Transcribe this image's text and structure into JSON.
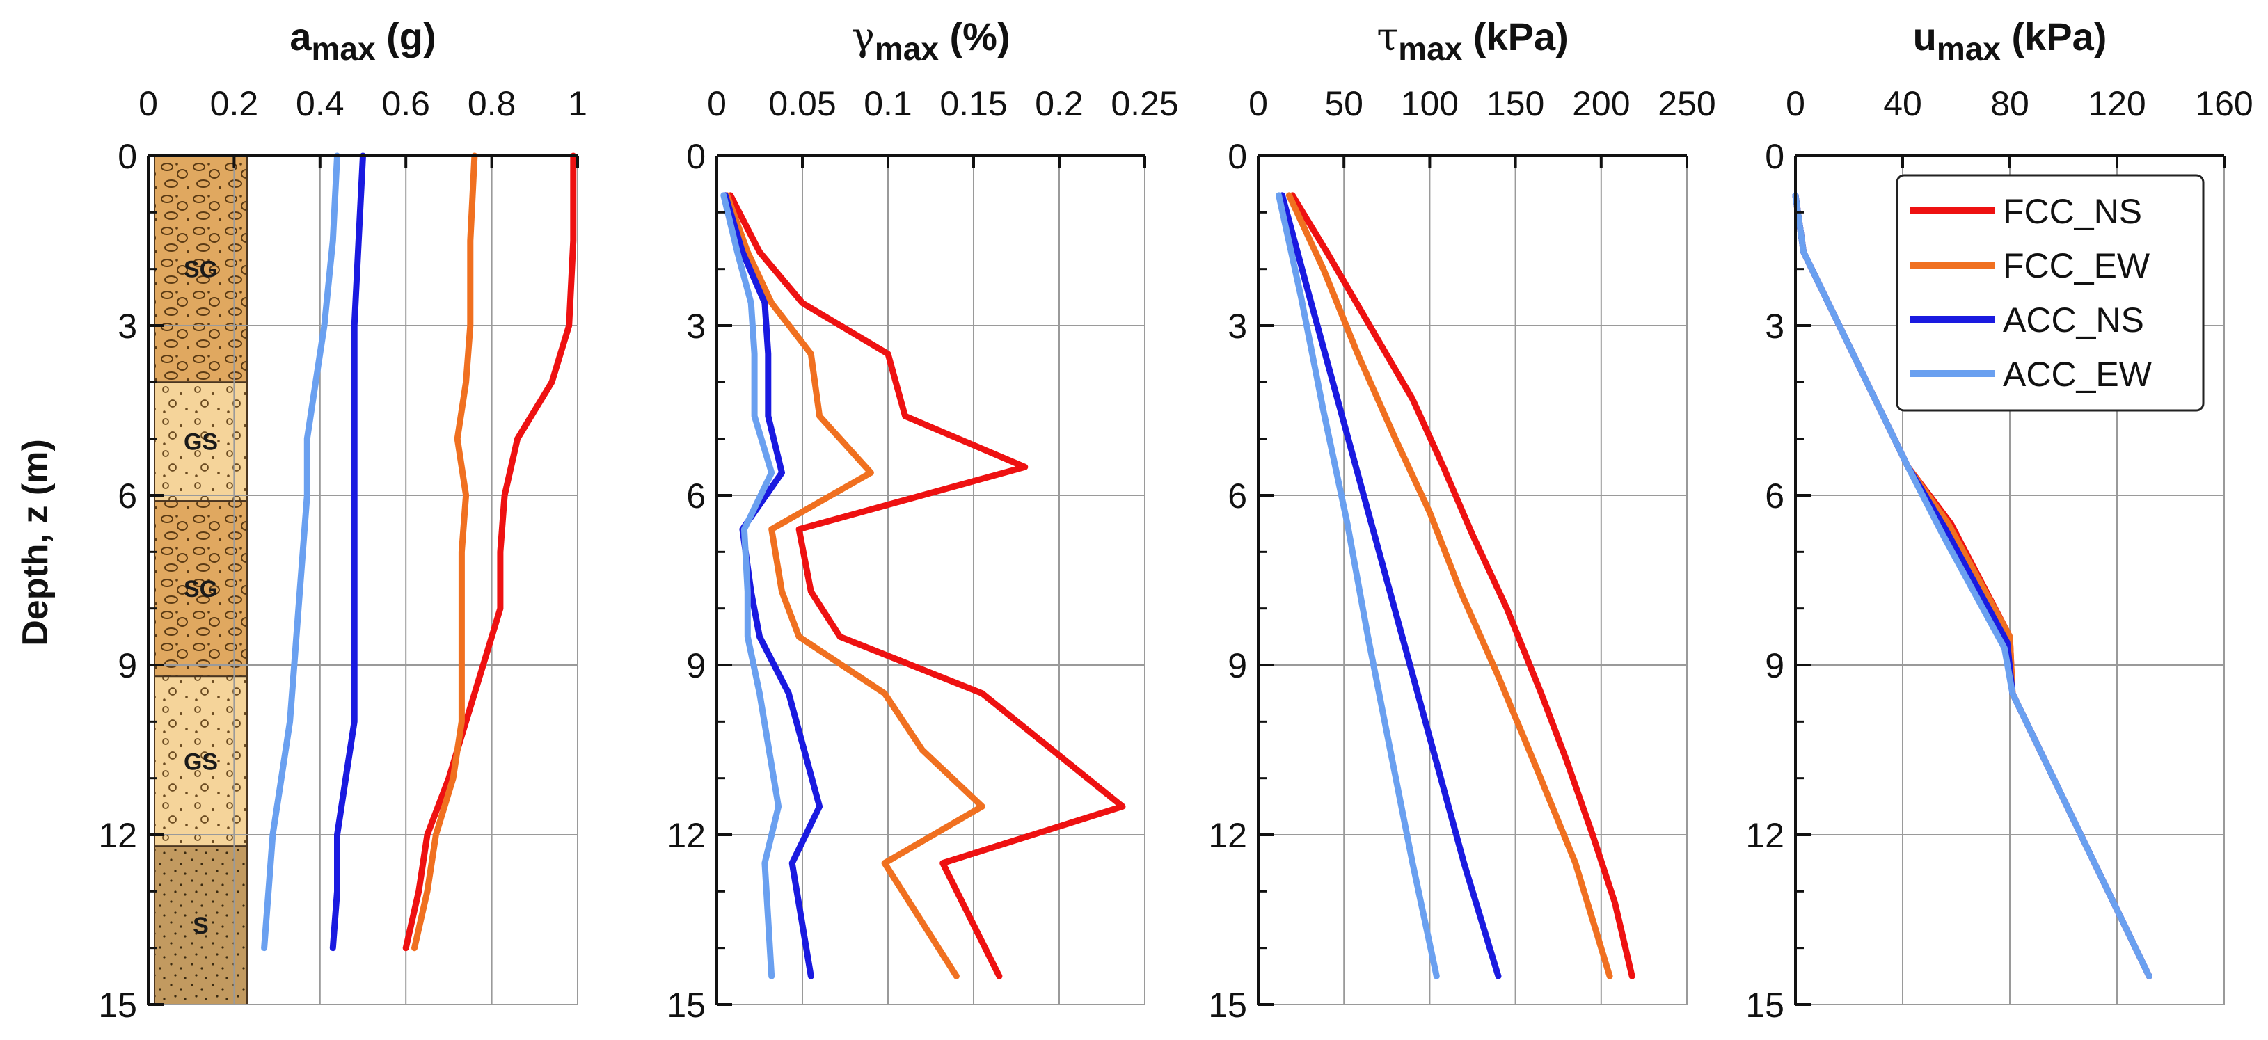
{
  "figure": {
    "ylabel": "Depth, z (m)",
    "y_ticks": [
      0,
      3,
      6,
      9,
      12,
      15
    ],
    "ylim": [
      0,
      15
    ]
  },
  "legend": {
    "entries": [
      {
        "name": "FCC_NS",
        "color": "#ee1111"
      },
      {
        "name": "FCC_EW",
        "color": "#f07020"
      },
      {
        "name": "ACC_NS",
        "color": "#1a1ae0"
      },
      {
        "name": "ACC_EW",
        "color": "#6aa0f0"
      }
    ]
  },
  "soil_column": {
    "layers": [
      {
        "label": "SG",
        "top": 0,
        "bottom": 4.0,
        "color": "#e0a860"
      },
      {
        "label": "GS",
        "top": 4.0,
        "bottom": 6.1,
        "color": "#f5d49a"
      },
      {
        "label": "SG",
        "top": 6.1,
        "bottom": 9.2,
        "color": "#e0a860"
      },
      {
        "label": "GS",
        "top": 9.2,
        "bottom": 12.2,
        "color": "#f5d49a"
      },
      {
        "label": "S",
        "top": 12.2,
        "bottom": 15.0,
        "color": "#c29a60"
      }
    ]
  },
  "chart_data": [
    {
      "type": "line",
      "title_main": "a",
      "title_sub": "max",
      "title_unit": " (g)",
      "xlim": [
        0,
        1
      ],
      "x_ticks": [
        0,
        0.2,
        0.4,
        0.6,
        0.8,
        1
      ],
      "x_tick_labels": [
        "0",
        "0.2",
        "0.4",
        "0.6",
        "0.8",
        "1"
      ],
      "ylabel": "Depth, z (m)",
      "ylim": [
        0,
        15
      ],
      "series": [
        {
          "name": "FCC_NS",
          "x": [
            0.99,
            0.99,
            0.98,
            0.94,
            0.86,
            0.83,
            0.82,
            0.82,
            0.78,
            0.74,
            0.7,
            0.65,
            0.63,
            0.6
          ],
          "y": [
            0,
            1.5,
            3.0,
            4.0,
            5.0,
            6.0,
            7.0,
            8.0,
            9.0,
            10.0,
            11.0,
            12.0,
            13.0,
            14.0
          ]
        },
        {
          "name": "FCC_EW",
          "x": [
            0.76,
            0.75,
            0.75,
            0.74,
            0.72,
            0.74,
            0.73,
            0.73,
            0.73,
            0.73,
            0.71,
            0.67,
            0.65,
            0.62
          ],
          "y": [
            0,
            1.5,
            3.0,
            4.0,
            5.0,
            6.0,
            7.0,
            8.0,
            9.0,
            10.0,
            11.0,
            12.0,
            13.0,
            14.0
          ]
        },
        {
          "name": "ACC_NS",
          "x": [
            0.5,
            0.49,
            0.48,
            0.48,
            0.48,
            0.48,
            0.48,
            0.48,
            0.48,
            0.48,
            0.46,
            0.44,
            0.44,
            0.43
          ],
          "y": [
            0,
            1.5,
            3.0,
            4.0,
            5.0,
            6.0,
            7.0,
            8.0,
            9.0,
            10.0,
            11.0,
            12.0,
            13.0,
            14.0
          ]
        },
        {
          "name": "ACC_EW",
          "x": [
            0.44,
            0.43,
            0.41,
            0.39,
            0.37,
            0.37,
            0.36,
            0.35,
            0.34,
            0.33,
            0.31,
            0.29,
            0.28,
            0.27
          ],
          "y": [
            0,
            1.5,
            3.0,
            4.0,
            5.0,
            6.0,
            7.0,
            8.0,
            9.0,
            10.0,
            11.0,
            12.0,
            13.0,
            14.0
          ]
        }
      ]
    },
    {
      "type": "line",
      "title_main": "γ",
      "title_sub": "max",
      "title_unit": " (%)",
      "xlim": [
        0,
        0.25
      ],
      "x_ticks": [
        0,
        0.05,
        0.1,
        0.15,
        0.2,
        0.25
      ],
      "x_tick_labels": [
        "0",
        "0.05",
        "0.1",
        "0.15",
        "0.2",
        "0.25"
      ],
      "ylabel": "Depth, z (m)",
      "ylim": [
        0,
        15
      ],
      "series": [
        {
          "name": "FCC_NS",
          "x": [
            0.008,
            0.025,
            0.05,
            0.1,
            0.11,
            0.18,
            0.048,
            0.055,
            0.072,
            0.155,
            0.237,
            0.132,
            0.165
          ],
          "y": [
            0.7,
            1.7,
            2.6,
            3.5,
            4.6,
            5.5,
            6.6,
            7.7,
            8.5,
            9.5,
            11.5,
            12.5,
            14.5
          ]
        },
        {
          "name": "FCC_EW",
          "x": [
            0.006,
            0.018,
            0.032,
            0.055,
            0.06,
            0.09,
            0.032,
            0.038,
            0.048,
            0.098,
            0.12,
            0.155,
            0.098,
            0.14
          ],
          "y": [
            0.7,
            1.7,
            2.6,
            3.5,
            4.6,
            5.6,
            6.6,
            7.7,
            8.5,
            9.5,
            10.5,
            11.5,
            12.5,
            14.5
          ]
        },
        {
          "name": "ACC_NS",
          "x": [
            0.005,
            0.015,
            0.028,
            0.03,
            0.03,
            0.038,
            0.015,
            0.02,
            0.025,
            0.042,
            0.06,
            0.044,
            0.055
          ],
          "y": [
            0.7,
            1.7,
            2.6,
            3.5,
            4.6,
            5.6,
            6.6,
            7.7,
            8.5,
            9.5,
            11.5,
            12.5,
            14.5
          ]
        },
        {
          "name": "ACC_EW",
          "x": [
            0.004,
            0.012,
            0.02,
            0.022,
            0.022,
            0.032,
            0.016,
            0.018,
            0.018,
            0.025,
            0.036,
            0.028,
            0.032
          ],
          "y": [
            0.7,
            1.7,
            2.6,
            3.5,
            4.6,
            5.6,
            6.6,
            7.7,
            8.5,
            9.5,
            11.5,
            12.5,
            14.5
          ]
        }
      ]
    },
    {
      "type": "line",
      "title_main": "τ",
      "title_sub": "max",
      "title_unit": " (kPa)",
      "xlim": [
        0,
        250
      ],
      "x_ticks": [
        0,
        50,
        100,
        150,
        200,
        250
      ],
      "x_tick_labels": [
        "0",
        "50",
        "100",
        "150",
        "200",
        "250"
      ],
      "ylabel": "Depth, z (m)",
      "ylim": [
        0,
        15
      ],
      "series": [
        {
          "name": "FCC_NS",
          "x": [
            20,
            40,
            65,
            90,
            108,
            125,
            145,
            165,
            180,
            195,
            208,
            218
          ],
          "y": [
            0.7,
            1.7,
            3.0,
            4.3,
            5.5,
            6.7,
            8.0,
            9.5,
            10.7,
            12.0,
            13.2,
            14.5
          ]
        },
        {
          "name": "FCC_EW",
          "x": [
            18,
            38,
            58,
            80,
            100,
            118,
            140,
            162,
            185,
            205
          ],
          "y": [
            0.7,
            2.0,
            3.5,
            5.0,
            6.3,
            7.7,
            9.2,
            10.8,
            12.5,
            14.5
          ]
        },
        {
          "name": "ACC_NS",
          "x": [
            14,
            30,
            48,
            66,
            84,
            102,
            120,
            140
          ],
          "y": [
            0.7,
            2.5,
            4.5,
            6.5,
            8.5,
            10.5,
            12.5,
            14.5
          ]
        },
        {
          "name": "ACC_EW",
          "x": [
            12,
            25,
            38,
            52,
            64,
            77,
            90,
            104
          ],
          "y": [
            0.7,
            2.5,
            4.5,
            6.5,
            8.5,
            10.5,
            12.5,
            14.5
          ]
        }
      ]
    },
    {
      "type": "line",
      "title_main": "u",
      "title_sub": "max",
      "title_unit": " (kPa)",
      "xlim": [
        0,
        160
      ],
      "x_ticks": [
        0,
        40,
        80,
        120,
        160
      ],
      "x_tick_labels": [
        "0",
        "40",
        "80",
        "120",
        "160"
      ],
      "ylabel": "Depth, z (m)",
      "ylim": [
        0,
        15
      ],
      "series": [
        {
          "name": "FCC_NS",
          "x": [
            0,
            3,
            42,
            58,
            80,
            81,
            132
          ],
          "y": [
            0.7,
            1.7,
            5.5,
            6.5,
            8.5,
            9.5,
            14.5
          ]
        },
        {
          "name": "FCC_EW",
          "x": [
            0,
            3,
            42,
            57,
            80,
            81,
            132
          ],
          "y": [
            0.7,
            1.7,
            5.5,
            6.5,
            8.5,
            9.5,
            14.5
          ]
        },
        {
          "name": "ACC_NS",
          "x": [
            0,
            3,
            42,
            56,
            79,
            81,
            132
          ],
          "y": [
            0.7,
            1.7,
            5.5,
            6.6,
            8.6,
            9.5,
            14.5
          ]
        },
        {
          "name": "ACC_EW",
          "x": [
            0,
            3,
            42,
            55,
            78,
            81,
            132
          ],
          "y": [
            0.7,
            1.7,
            5.5,
            6.7,
            8.7,
            9.5,
            14.5
          ]
        }
      ]
    }
  ]
}
